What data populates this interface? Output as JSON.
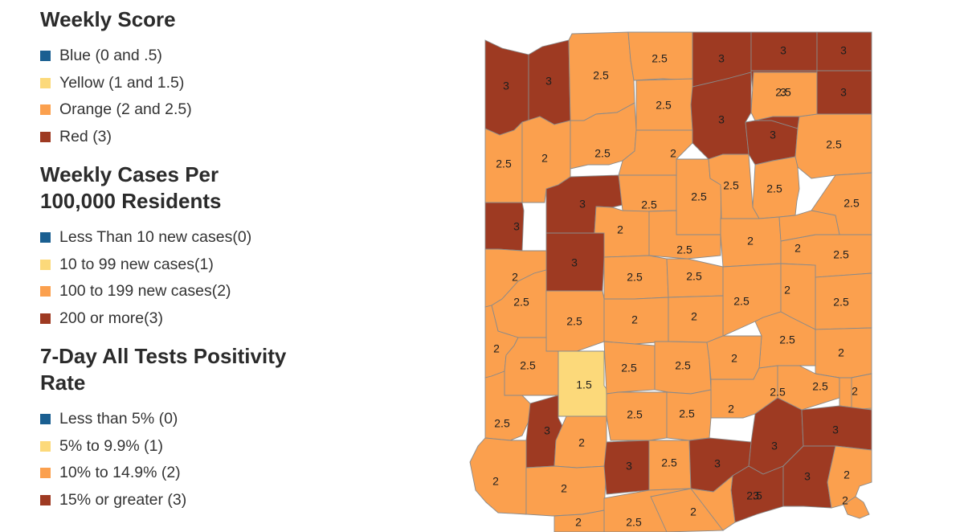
{
  "colors": {
    "blue": "#1a5f91",
    "yellow": "#fcd97a",
    "orange": "#fba04e",
    "red": "#9e3a22",
    "border": "#8a8a8a"
  },
  "legend": [
    {
      "heading": "Weekly Score",
      "items": [
        {
          "label": "Blue (0 and .5)",
          "color": "#1a5f91"
        },
        {
          "label": "Yellow (1 and 1.5)",
          "color": "#fcd97a"
        },
        {
          "label": "Orange (2 and 2.5)",
          "color": "#fba04e"
        },
        {
          "label": "Red (3)",
          "color": "#9e3a22"
        }
      ]
    },
    {
      "heading": "Weekly Cases Per 100,000 Residents",
      "items": [
        {
          "label": "Less Than 10 new cases(0)",
          "color": "#1a5f91"
        },
        {
          "label": "10 to 99 new cases(1)",
          "color": "#fcd97a"
        },
        {
          "label": "100 to 199 new cases(2)",
          "color": "#fba04e"
        },
        {
          "label": "200 or more(3)",
          "color": "#9e3a22"
        }
      ]
    },
    {
      "heading": "7-Day All Tests Positivity Rate",
      "items": [
        {
          "label": "Less than 5% (0)",
          "color": "#1a5f91"
        },
        {
          "label": "5% to 9.9% (1)",
          "color": "#fcd97a"
        },
        {
          "label": "10% to 14.9% (2)",
          "color": "#fba04e"
        },
        {
          "label": "15% or greater (3)",
          "color": "#9e3a22"
        }
      ]
    }
  ],
  "map": {
    "counties": [
      {
        "score": "3"
      },
      {
        "score": "3"
      },
      {
        "score": "2.5"
      },
      {
        "score": "2.5"
      },
      {
        "score": "3"
      },
      {
        "score": "3"
      },
      {
        "score": "3"
      },
      {
        "score": "2.5"
      },
      {
        "score": "2"
      },
      {
        "score": "2.5"
      },
      {
        "score": "2.5"
      },
      {
        "score": "3"
      },
      {
        "score": "3"
      },
      {
        "score": "2.5"
      },
      {
        "score": "2.5"
      },
      {
        "score": "2"
      },
      {
        "score": "3"
      },
      {
        "score": "3"
      },
      {
        "score": "3"
      },
      {
        "score": "2.5"
      },
      {
        "score": "2.5"
      },
      {
        "score": "2.5"
      },
      {
        "score": "2.5"
      },
      {
        "score": "3"
      },
      {
        "score": "2.5"
      },
      {
        "score": "2"
      },
      {
        "score": "2.5"
      },
      {
        "score": "2"
      },
      {
        "score": "2.5"
      },
      {
        "score": "2"
      },
      {
        "score": "2.5"
      },
      {
        "score": "2"
      },
      {
        "score": "3"
      },
      {
        "score": "2.5"
      },
      {
        "score": "2.5"
      },
      {
        "score": "2.5"
      },
      {
        "score": "2"
      },
      {
        "score": "2.5"
      },
      {
        "score": "2.5"
      },
      {
        "score": "2"
      },
      {
        "score": "2"
      },
      {
        "score": "2.5"
      },
      {
        "score": "2"
      },
      {
        "score": "2"
      },
      {
        "score": "2.5"
      },
      {
        "score": "1.5"
      },
      {
        "score": "2.5"
      },
      {
        "score": "2.5"
      },
      {
        "score": "2"
      },
      {
        "score": "2"
      },
      {
        "score": "2.5"
      },
      {
        "score": "2.5"
      },
      {
        "score": "2"
      },
      {
        "score": "2.5"
      },
      {
        "score": "3"
      },
      {
        "score": "2"
      },
      {
        "score": "2.5"
      },
      {
        "score": "2.5"
      },
      {
        "score": "3"
      },
      {
        "score": "3"
      },
      {
        "score": "2"
      },
      {
        "score": "2"
      },
      {
        "score": "3"
      },
      {
        "score": "2.5"
      },
      {
        "score": "3"
      },
      {
        "score": "3"
      },
      {
        "score": "3"
      },
      {
        "score": "2"
      },
      {
        "score": "2.5"
      },
      {
        "score": "2.5"
      },
      {
        "score": "2"
      },
      {
        "score": "2"
      },
      {
        "score": "2"
      }
    ]
  }
}
